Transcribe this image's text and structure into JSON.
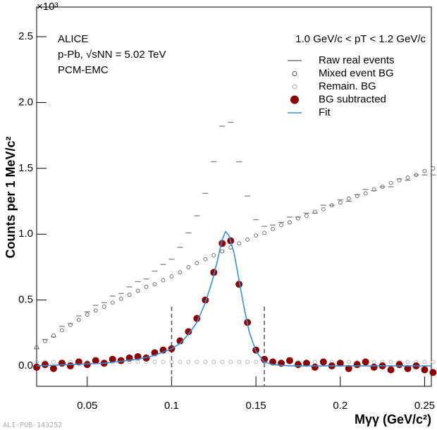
{
  "chart_data": {
    "type": "scatter",
    "y_multiplier": "×10³",
    "x_label": "Mγγ (GeV/c²)",
    "y_label": "Counts per 1 MeV/c²",
    "annotations": [
      "ALICE",
      "p-Pb, √sNN = 5.02 TeV",
      "PCM-EMC",
      "1.0 GeV/c < pT < 1.2 GeV/c"
    ],
    "watermark": "ALI-PUB-143252",
    "xlim": [
      0.02,
      0.254
    ],
    "ylim": [
      -0.155,
      2.725
    ],
    "xticks": [
      0.05,
      0.1,
      0.15,
      0.2,
      0.25
    ],
    "yticks": [
      {
        "value": 0,
        "label": "0.0"
      },
      0.5,
      {
        "value": 1,
        "label": "1.0"
      },
      1.5,
      {
        "value": 2,
        "label": "2.0"
      },
      2.5
    ],
    "vlines": [
      0.1,
      0.155
    ],
    "legend": "top-right",
    "x": [
      0.02,
      0.025,
      0.03,
      0.035,
      0.04,
      0.045,
      0.05,
      0.055,
      0.06,
      0.065,
      0.07,
      0.075,
      0.08,
      0.085,
      0.09,
      0.095,
      0.1,
      0.105,
      0.11,
      0.115,
      0.12,
      0.125,
      0.13,
      0.135,
      0.14,
      0.145,
      0.15,
      0.155,
      0.16,
      0.165,
      0.17,
      0.175,
      0.18,
      0.185,
      0.19,
      0.195,
      0.2,
      0.205,
      0.21,
      0.215,
      0.22,
      0.225,
      0.23,
      0.235,
      0.24,
      0.245,
      0.25,
      0.255
    ],
    "series": [
      {
        "name": "Raw real events",
        "color": "#777777",
        "marker": "line",
        "values": [
          0.13,
          0.2,
          0.22,
          0.3,
          0.32,
          0.38,
          0.41,
          0.46,
          0.48,
          0.53,
          0.55,
          0.6,
          0.64,
          0.66,
          0.72,
          0.77,
          0.81,
          0.9,
          1.01,
          1.14,
          1.31,
          1.55,
          1.82,
          1.85,
          1.55,
          1.29,
          1.11,
          1.06,
          1.07,
          1.09,
          1.13,
          1.13,
          1.16,
          1.16,
          1.22,
          1.22,
          1.26,
          1.25,
          1.3,
          1.34,
          1.33,
          1.36,
          1.36,
          1.42,
          1.41,
          1.45,
          1.45,
          1.45
        ]
      },
      {
        "name": "Mixed event BG",
        "color": "#555555",
        "marker": "open-circle",
        "values": [
          0.14,
          0.19,
          0.23,
          0.27,
          0.31,
          0.35,
          0.39,
          0.42,
          0.45,
          0.48,
          0.51,
          0.54,
          0.57,
          0.6,
          0.62,
          0.65,
          0.68,
          0.71,
          0.75,
          0.78,
          0.81,
          0.84,
          0.87,
          0.9,
          0.93,
          0.96,
          0.99,
          1.01,
          1.04,
          1.07,
          1.09,
          1.12,
          1.14,
          1.17,
          1.19,
          1.22,
          1.24,
          1.27,
          1.29,
          1.31,
          1.34,
          1.36,
          1.39,
          1.41,
          1.43,
          1.45,
          1.48,
          1.5
        ]
      },
      {
        "name": "Remain. BG",
        "color": "#aaaaaa",
        "marker": "open-circle",
        "values": [
          0.03,
          0.03,
          0.03,
          0.03,
          0.03,
          0.03,
          0.03,
          0.03,
          0.03,
          0.03,
          0.03,
          0.03,
          0.03,
          0.03,
          0.03,
          0.03,
          0.03,
          0.03,
          0.03,
          0.03,
          0.03,
          0.03,
          0.03,
          0.03,
          0.03,
          0.03,
          0.03,
          0.03,
          0.03,
          0.03,
          0.03,
          0.03,
          0.03,
          0.03,
          0.03,
          0.03,
          0.03,
          0.03,
          0.03,
          0.03,
          0.03,
          0.03,
          0.03,
          0.03,
          0.03,
          0.03,
          0.03,
          0.03
        ]
      },
      {
        "name": "BG subtracted",
        "color": "#8b0000",
        "marker": "filled-circle",
        "values": [
          -0.01,
          0.01,
          -0.02,
          0.02,
          0,
          0.03,
          0.01,
          0.04,
          0.02,
          0.05,
          0.04,
          0.06,
          0.07,
          0.06,
          0.1,
          0.12,
          0.13,
          0.19,
          0.26,
          0.36,
          0.5,
          0.71,
          0.93,
          0.95,
          0.62,
          0.33,
          0.12,
          0.05,
          0.03,
          0.02,
          0.04,
          0.01,
          0.02,
          -0.01,
          0.03,
          0,
          0.02,
          -0.02,
          0.01,
          0.03,
          -0.01,
          0,
          -0.03,
          0.01,
          -0.02,
          0,
          -0.03,
          -0.05
        ]
      },
      {
        "name": "Fit",
        "color": "#3a8fd0",
        "marker": "curve",
        "x": [
          0.02,
          0.04,
          0.06,
          0.08,
          0.09,
          0.1,
          0.105,
          0.11,
          0.115,
          0.12,
          0.124,
          0.127,
          0.13,
          0.132,
          0.134,
          0.137,
          0.14,
          0.143,
          0.146,
          0.15,
          0.155,
          0.16,
          0.17,
          0.19,
          0.22,
          0.254
        ],
        "values": [
          0,
          0.01,
          0.02,
          0.05,
          0.08,
          0.13,
          0.17,
          0.24,
          0.33,
          0.48,
          0.64,
          0.79,
          0.96,
          1.02,
          0.99,
          0.86,
          0.65,
          0.44,
          0.26,
          0.11,
          0.03,
          0.01,
          0,
          0,
          0,
          0
        ]
      }
    ]
  }
}
